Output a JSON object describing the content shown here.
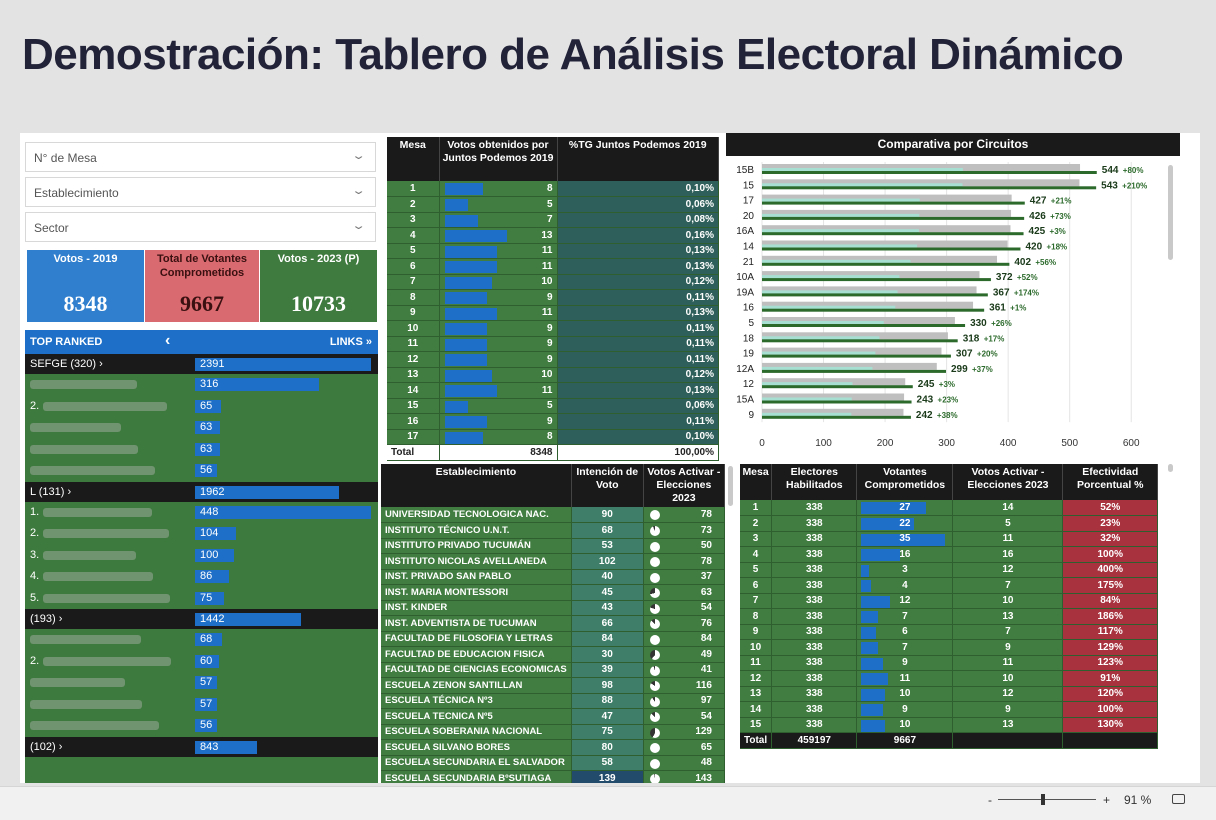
{
  "page_title": "Demostración: Tablero de Análisis Electoral Dinámico",
  "slicers": [
    {
      "placeholder": "N° de Mesa"
    },
    {
      "placeholder": "Establecimiento"
    },
    {
      "placeholder": "Sector"
    }
  ],
  "kpis": [
    {
      "label": "Votos - 2019",
      "value": "8348"
    },
    {
      "label": "Total de Votantes Comprometidos",
      "value": "9667"
    },
    {
      "label": "Votos - 2023 (P)",
      "value": "10733"
    }
  ],
  "top_ranked": {
    "header": "TOP RANKED",
    "links": "LINKS",
    "rows": [
      {
        "type": "group",
        "label": "SEFGE (320) ›",
        "value": 2391,
        "value_text": "2391"
      },
      {
        "type": "item",
        "label": "",
        "value": 316,
        "value_text": "316"
      },
      {
        "type": "item",
        "label": "2.",
        "value": 65,
        "value_text": "65"
      },
      {
        "type": "item",
        "label": "",
        "value": 63,
        "value_text": "63"
      },
      {
        "type": "item",
        "label": "",
        "value": 63,
        "value_text": "63"
      },
      {
        "type": "item",
        "label": "",
        "value": 56,
        "value_text": "56"
      },
      {
        "type": "group",
        "label": "L (131) ›",
        "value": 1962,
        "value_text": "1962"
      },
      {
        "type": "item",
        "label": "1.",
        "value": 448,
        "value_text": "448"
      },
      {
        "type": "item",
        "label": "2.",
        "value": 104,
        "value_text": "104"
      },
      {
        "type": "item",
        "label": "3.",
        "value": 100,
        "value_text": "100"
      },
      {
        "type": "item",
        "label": "4.",
        "value": 86,
        "value_text": "86"
      },
      {
        "type": "item",
        "label": "5.",
        "value": 75,
        "value_text": "75"
      },
      {
        "type": "group",
        "label": "(193) ›",
        "value": 1442,
        "value_text": "1442"
      },
      {
        "type": "item",
        "label": "",
        "value": 68,
        "value_text": "68"
      },
      {
        "type": "item",
        "label": "2.",
        "value": 60,
        "value_text": "60"
      },
      {
        "type": "item",
        "label": "",
        "value": 57,
        "value_text": "57"
      },
      {
        "type": "item",
        "label": "",
        "value": 57,
        "value_text": "57"
      },
      {
        "type": "item",
        "label": "",
        "value": 56,
        "value_text": "56"
      },
      {
        "type": "group",
        "label": "(102) ›",
        "value": 843,
        "value_text": "843"
      }
    ]
  },
  "table_mesa": {
    "headers": [
      "Mesa",
      "Votos obtenidos por Juntos Podemos 2019",
      "%TG Juntos Podemos 2019"
    ],
    "rows": [
      [
        "1",
        "8",
        "0,10%"
      ],
      [
        "2",
        "5",
        "0,06%"
      ],
      [
        "3",
        "7",
        "0,08%"
      ],
      [
        "4",
        "13",
        "0,16%"
      ],
      [
        "5",
        "11",
        "0,13%"
      ],
      [
        "6",
        "11",
        "0,13%"
      ],
      [
        "7",
        "10",
        "0,12%"
      ],
      [
        "8",
        "9",
        "0,11%"
      ],
      [
        "9",
        "11",
        "0,13%"
      ],
      [
        "10",
        "9",
        "0,11%"
      ],
      [
        "11",
        "9",
        "0,11%"
      ],
      [
        "12",
        "9",
        "0,11%"
      ],
      [
        "13",
        "10",
        "0,12%"
      ],
      [
        "14",
        "11",
        "0,13%"
      ],
      [
        "15",
        "5",
        "0,06%"
      ],
      [
        "16",
        "9",
        "0,11%"
      ],
      [
        "17",
        "8",
        "0,10%"
      ]
    ],
    "total": [
      "Total",
      "8348",
      "100,00%"
    ]
  },
  "table_establecimiento": {
    "headers": [
      "Establecimiento",
      "Intención de Voto",
      "Votos Activar - Elecciones 2023"
    ],
    "rows": [
      [
        "UNIVERSIDAD TECNOLOGICA NAC.",
        "90",
        "78"
      ],
      [
        "INSTITUTO TÉCNICO U.N.T.",
        "68",
        "73"
      ],
      [
        "INSTITUTO PRIVADO TUCUMÁN",
        "53",
        "50"
      ],
      [
        "INSTITUTO NICOLAS AVELLANEDA",
        "102",
        "78"
      ],
      [
        "INST. PRIVADO SAN PABLO",
        "40",
        "37"
      ],
      [
        "INST. MARIA MONTESSORI",
        "45",
        "63"
      ],
      [
        "INST. KINDER",
        "43",
        "54"
      ],
      [
        "INST. ADVENTISTA DE TUCUMAN",
        "66",
        "76"
      ],
      [
        "FACULTAD DE FILOSOFIA Y LETRAS",
        "84",
        "84"
      ],
      [
        "FACULTAD DE EDUCACION FISICA",
        "30",
        "49"
      ],
      [
        "FACULTAD DE CIENCIAS ECONOMICAS",
        "39",
        "41"
      ],
      [
        "ESCUELA ZENON SANTILLAN",
        "98",
        "116"
      ],
      [
        "ESCUELA TÉCNICA Nº3",
        "88",
        "97"
      ],
      [
        "ESCUELA TECNICA Nº5",
        "47",
        "54"
      ],
      [
        "ESCUELA SOBERANIA NACIONAL",
        "75",
        "129"
      ],
      [
        "ESCUELA SILVANO BORES",
        "80",
        "65"
      ],
      [
        "ESCUELA SECUNDARIA EL SALVADOR",
        "58",
        "48"
      ],
      [
        "ESCUELA SECUNDARIA BºSUTIAGA",
        "139",
        "143"
      ]
    ]
  },
  "table_efectividad": {
    "headers": [
      "Mesa",
      "Electores Habilitados",
      "Votantes Comprometidos",
      "Votos Activar - Elecciones 2023",
      "Efectividad Porcentual %"
    ],
    "rows": [
      [
        "1",
        "338",
        "27",
        "14",
        "52%"
      ],
      [
        "2",
        "338",
        "22",
        "5",
        "23%"
      ],
      [
        "3",
        "338",
        "35",
        "11",
        "32%"
      ],
      [
        "4",
        "338",
        "16",
        "16",
        "100%"
      ],
      [
        "5",
        "338",
        "3",
        "12",
        "400%"
      ],
      [
        "6",
        "338",
        "4",
        "7",
        "175%"
      ],
      [
        "7",
        "338",
        "12",
        "10",
        "84%"
      ],
      [
        "8",
        "338",
        "7",
        "13",
        "186%"
      ],
      [
        "9",
        "338",
        "6",
        "7",
        "117%"
      ],
      [
        "10",
        "338",
        "7",
        "9",
        "129%"
      ],
      [
        "11",
        "338",
        "9",
        "11",
        "123%"
      ],
      [
        "12",
        "338",
        "11",
        "10",
        "91%"
      ],
      [
        "13",
        "338",
        "10",
        "12",
        "120%"
      ],
      [
        "14",
        "338",
        "9",
        "9",
        "100%"
      ],
      [
        "15",
        "338",
        "10",
        "13",
        "130%"
      ]
    ],
    "total": [
      "Total",
      "459197",
      "9667",
      "",
      ""
    ]
  },
  "chart_data": {
    "type": "bar",
    "orientation": "horizontal",
    "title": "Comparativa por Circuitos",
    "categories": [
      "15B",
      "15",
      "17",
      "20",
      "16A",
      "14",
      "21",
      "10A",
      "19A",
      "16",
      "5",
      "18",
      "19",
      "12A",
      "12",
      "15A",
      "9"
    ],
    "values": [
      544,
      543,
      427,
      426,
      425,
      420,
      402,
      372,
      367,
      361,
      330,
      318,
      307,
      299,
      245,
      243,
      242
    ],
    "growth_labels": [
      "+80%",
      "+210%",
      "+21%",
      "+73%",
      "+3%",
      "+18%",
      "+56%",
      "+52%",
      "+174%",
      "+1%",
      "+26%",
      "+17%",
      "+20%",
      "+37%",
      "+3%",
      "+23%",
      "+38%"
    ],
    "xlim": [
      0,
      650
    ],
    "xticks": [
      "0",
      "100",
      "200",
      "300",
      "400",
      "500",
      "600"
    ]
  },
  "footer": {
    "zoom": "91 %",
    "minus": "-",
    "plus": "+"
  },
  "colors": {
    "green": "#417d41",
    "blue": "#1d6fc7",
    "red": "#a8323e",
    "dark": "#1a1a1a"
  }
}
